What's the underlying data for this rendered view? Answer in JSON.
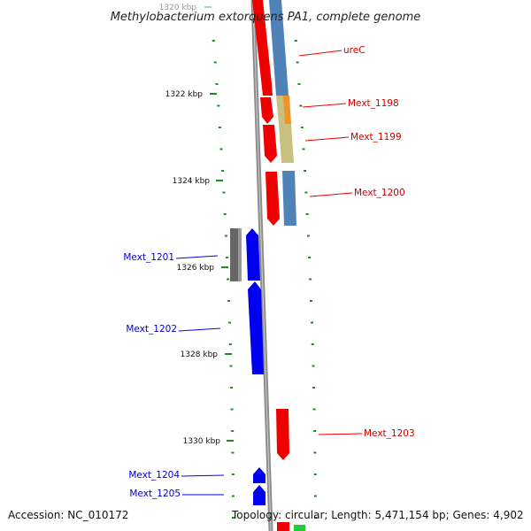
{
  "title": "Methylobacterium extorquens PA1, complete genome",
  "accession": "Accession: NC_010172",
  "summary": "Topology: circular; Length: 5,471,154 bp; Genes: 4,902",
  "colors": {
    "forward_cds": "#ee0000",
    "reverse_cds": "#0000ee",
    "steelblue": "#4f82b8",
    "orange": "#f0922a",
    "khaki": "#c8c07e",
    "gray": "#666666",
    "tick": "#228b22",
    "backbone": "#8c8c8c"
  },
  "ticks": [
    "1320 kbp",
    "1322 kbp",
    "1324 kbp",
    "1326 kbp",
    "1328 kbp",
    "1330 kbp"
  ],
  "genes": [
    {
      "label": "ureC",
      "strand": "forward"
    },
    {
      "label": "Mext_1198",
      "strand": "forward"
    },
    {
      "label": "Mext_1199",
      "strand": "forward"
    },
    {
      "label": "Mext_1200",
      "strand": "forward"
    },
    {
      "label": "Mext_1201",
      "strand": "reverse"
    },
    {
      "label": "Mext_1202",
      "strand": "reverse"
    },
    {
      "label": "Mext_1203",
      "strand": "forward"
    },
    {
      "label": "Mext_1204",
      "strand": "reverse"
    },
    {
      "label": "Mext_1205",
      "strand": "reverse"
    }
  ]
}
